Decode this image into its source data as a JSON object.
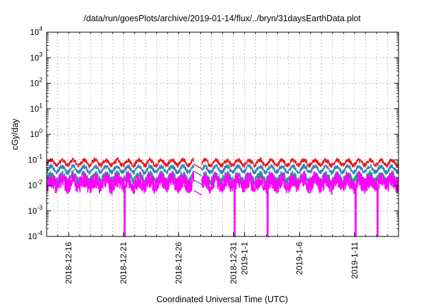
{
  "chart_data": {
    "type": "line",
    "title": "/data/run/goesPlots/archive/2019-01-14/flux/../bryn/31daysEarthData.plot",
    "xlabel": "Coordinated Universal Time (UTC)",
    "ylabel": "cGy/day",
    "yscale": "log",
    "ylim": [
      0.0001,
      10000
    ],
    "xlim": [
      "2018-12-14",
      "2019-01-15"
    ],
    "grid": true,
    "legend": "none",
    "y_ticks": [
      {
        "value": 0.0001,
        "base": "10",
        "exp": "-4"
      },
      {
        "value": 0.001,
        "base": "10",
        "exp": "-3"
      },
      {
        "value": 0.01,
        "base": "10",
        "exp": "-2"
      },
      {
        "value": 0.1,
        "base": "10",
        "exp": "-1"
      },
      {
        "value": 1,
        "base": "10",
        "exp": "0"
      },
      {
        "value": 10,
        "base": "10",
        "exp": "1"
      },
      {
        "value": 100,
        "base": "10",
        "exp": "2"
      },
      {
        "value": 1000,
        "base": "10",
        "exp": "3"
      },
      {
        "value": 10000,
        "base": "10",
        "exp": "4"
      }
    ],
    "x_ticks": [
      "2018-12-16",
      "2018-12-21",
      "2018-12-26",
      "2018-12-31",
      "2019-1-1",
      "2019-1-6",
      "2019-1-11"
    ],
    "x_tick_dates": [
      "2018-12-16",
      "2018-12-21",
      "2018-12-26",
      "2018-12-31",
      "2019-01-01",
      "2019-01-06",
      "2019-01-11"
    ],
    "data_gap": [
      "2018-12-27",
      "2018-12-28"
    ],
    "dropouts": [
      "2018-12-21",
      "2018-12-31",
      "2019-01-03",
      "2019-01-11",
      "2019-01-13"
    ],
    "series": [
      {
        "color": "#e41a1c",
        "base_value": 0.075,
        "daily_peak": 0.1
      },
      {
        "color": "#377eb8",
        "base_value": 0.04,
        "daily_peak": 0.06
      },
      {
        "color": "#1f9e89",
        "base_value": 0.018,
        "daily_peak": 0.03
      },
      {
        "color": "#ff00ff",
        "base_value": 0.007,
        "daily_peak": 0.02
      }
    ]
  }
}
